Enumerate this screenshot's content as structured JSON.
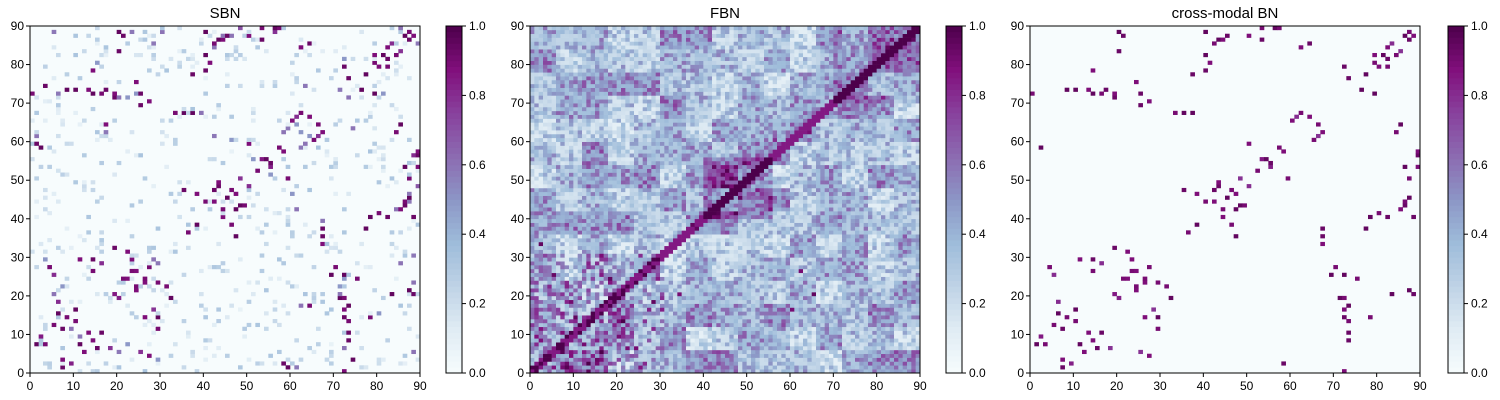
{
  "chart_data": [
    {
      "type": "heatmap",
      "title": "SBN",
      "xlabel": "",
      "ylabel": "",
      "xlim": [
        0,
        90
      ],
      "ylim": [
        0,
        90
      ],
      "xticks": [
        "0",
        "10",
        "20",
        "30",
        "40",
        "50",
        "60",
        "70",
        "80",
        "90"
      ],
      "yticks": [
        "0",
        "10",
        "20",
        "30",
        "40",
        "50",
        "60",
        "70",
        "80",
        "90"
      ],
      "colorbar": {
        "range": [
          0,
          1
        ],
        "ticks": [
          "0.0",
          "0.2",
          "0.4",
          "0.6",
          "0.8",
          "1.0"
        ]
      },
      "colormap": [
        "#f7fcfd",
        "#e0ecf4",
        "#bfd3e6",
        "#9ebcda",
        "#8c96c6",
        "#8c6bb1",
        "#88419d",
        "#810f7c",
        "#4d004b"
      ],
      "grid_size": 90,
      "pattern": "sparse",
      "edges": [
        [
          1,
          7,
          0.95
        ],
        [
          3,
          7,
          0.9
        ],
        [
          2,
          9,
          0.85
        ],
        [
          5,
          12,
          0.9
        ],
        [
          6,
          15,
          0.95
        ],
        [
          8,
          14,
          0.9
        ],
        [
          9,
          11,
          0.6
        ],
        [
          10,
          13,
          0.9
        ],
        [
          10,
          16,
          0.95
        ],
        [
          11,
          7,
          0.95
        ],
        [
          4,
          27,
          0.9
        ],
        [
          5,
          25,
          0.8
        ],
        [
          6,
          18,
          0.8
        ],
        [
          5,
          20,
          0.6
        ],
        [
          7,
          22,
          0.5
        ],
        [
          3,
          29,
          0.5
        ],
        [
          2,
          58,
          0.95
        ],
        [
          1,
          61,
          0.6
        ],
        [
          0,
          72,
          0.9
        ],
        [
          8,
          73,
          0.95
        ],
        [
          10,
          73,
          0.95
        ],
        [
          14,
          72,
          0.95
        ],
        [
          16,
          72,
          0.9
        ],
        [
          20,
          71,
          0.6
        ],
        [
          22,
          71,
          0.5
        ],
        [
          24,
          72,
          0.5
        ],
        [
          14,
          26,
          0.9
        ],
        [
          16,
          28,
          0.8
        ],
        [
          19,
          20,
          0.85
        ],
        [
          23,
          26,
          0.9
        ],
        [
          21,
          24,
          0.9
        ],
        [
          26,
          24,
          0.9
        ],
        [
          24,
          22,
          0.9
        ],
        [
          27,
          27,
          0.9
        ],
        [
          28,
          29,
          0.6
        ],
        [
          29,
          23,
          0.9
        ],
        [
          29,
          14,
          0.95
        ],
        [
          29,
          11,
          0.9
        ],
        [
          32,
          19,
          0.95
        ],
        [
          31,
          22,
          0.9
        ],
        [
          35,
          67,
          0.95
        ],
        [
          33,
          67,
          0.9
        ],
        [
          37,
          67,
          0.95
        ],
        [
          39,
          67,
          0.6
        ],
        [
          40,
          82,
          0.95
        ],
        [
          43,
          86,
          0.95
        ],
        [
          40,
          88,
          0.95
        ],
        [
          42,
          85,
          0.9
        ],
        [
          36,
          36,
          0.9
        ],
        [
          38,
          38,
          0.95
        ],
        [
          40,
          44,
          0.9
        ],
        [
          44,
          42,
          0.9
        ],
        [
          45,
          45,
          0.95
        ],
        [
          46,
          47,
          0.9
        ],
        [
          47,
          42,
          0.95
        ],
        [
          48,
          43,
          0.95
        ],
        [
          49,
          43,
          0.9
        ],
        [
          46,
          38,
          0.9
        ],
        [
          47,
          35,
          0.95
        ],
        [
          50,
          48,
          0.8
        ],
        [
          52,
          52,
          0.9
        ],
        [
          54,
          55,
          0.95
        ],
        [
          53,
          55,
          0.85
        ],
        [
          55,
          51,
          0.5
        ],
        [
          57,
          58,
          0.9
        ],
        [
          58,
          62,
          0.6
        ],
        [
          59,
          50,
          0.9
        ],
        [
          60,
          46,
          0.5
        ],
        [
          61,
          42,
          0.6
        ],
        [
          62,
          62,
          0.5
        ],
        [
          63,
          59,
          0.6
        ],
        [
          64,
          61,
          0.5
        ],
        [
          65,
          60,
          0.9
        ],
        [
          66,
          64,
          0.9
        ],
        [
          61,
          66,
          0.8
        ],
        [
          62,
          67,
          0.9
        ],
        [
          56,
          89,
          0.95
        ],
        [
          53,
          89,
          0.9
        ],
        [
          48,
          89,
          0.7
        ],
        [
          46,
          87,
          0.6
        ],
        [
          59,
          1,
          0.95
        ],
        [
          62,
          17,
          0.6
        ],
        [
          64,
          17,
          0.9
        ],
        [
          71,
          19,
          0.95
        ],
        [
          72,
          19,
          0.9
        ],
        [
          72,
          25,
          0.95
        ],
        [
          73,
          13,
          0.9
        ],
        [
          73,
          17,
          0.95
        ],
        [
          74,
          3,
          0.95
        ],
        [
          72,
          6,
          0.6
        ],
        [
          70,
          27,
          0.9
        ],
        [
          69,
          25,
          0.95
        ],
        [
          76,
          73,
          0.95
        ],
        [
          73,
          71,
          0.6
        ],
        [
          74,
          63,
          0.6
        ],
        [
          77,
          77,
          0.95
        ],
        [
          79,
          80,
          0.9
        ],
        [
          81,
          82,
          0.95
        ],
        [
          82,
          79,
          0.9
        ],
        [
          83,
          85,
          0.8
        ],
        [
          79,
          72,
          0.95
        ],
        [
          81,
          72,
          0.5
        ],
        [
          86,
          87,
          0.95
        ],
        [
          87,
          88,
          0.9
        ],
        [
          85,
          89,
          0.6
        ],
        [
          84,
          82,
          0.9
        ],
        [
          85,
          64,
          0.95
        ],
        [
          84,
          62,
          0.9
        ],
        [
          86,
          53,
          0.95
        ],
        [
          87,
          50,
          0.9
        ],
        [
          88,
          56,
          0.8
        ],
        [
          87,
          45,
          0.95
        ],
        [
          86,
          44,
          0.9
        ],
        [
          84,
          42,
          0.6
        ],
        [
          82,
          40,
          0.8
        ],
        [
          80,
          41,
          0.9
        ],
        [
          78,
          40,
          0.95
        ],
        [
          77,
          37,
          0.95
        ],
        [
          87,
          21,
          0.95
        ],
        [
          88,
          23,
          0.6
        ],
        [
          85,
          28,
          0.6
        ],
        [
          83,
          20,
          0.95
        ],
        [
          80,
          15,
          0.5
        ],
        [
          78,
          14,
          0.9
        ],
        [
          88,
          5,
          0.6
        ],
        [
          75,
          24,
          0.9
        ],
        [
          90,
          89,
          0.6
        ],
        [
          20,
          88,
          0.95
        ],
        [
          21,
          87,
          0.9
        ],
        [
          30,
          88,
          0.6
        ],
        [
          44,
          87,
          0.6
        ],
        [
          57,
          89,
          0.9
        ]
      ]
    },
    {
      "type": "heatmap",
      "title": "FBN",
      "xlabel": "",
      "ylabel": "",
      "xlim": [
        0,
        90
      ],
      "ylim": [
        0,
        90
      ],
      "xticks": [
        "0",
        "10",
        "20",
        "30",
        "40",
        "50",
        "60",
        "70",
        "80",
        "90"
      ],
      "yticks": [
        "0",
        "10",
        "20",
        "30",
        "40",
        "50",
        "60",
        "70",
        "80",
        "90"
      ],
      "colorbar": {
        "range": [
          0,
          1
        ],
        "ticks": [
          "0.0",
          "0.2",
          "0.4",
          "0.6",
          "0.8",
          "1.0"
        ]
      },
      "colormap": [
        "#f7fcfd",
        "#e0ecf4",
        "#bfd3e6",
        "#9ebcda",
        "#8c96c6",
        "#8c6bb1",
        "#88419d",
        "#810f7c",
        "#4d004b"
      ],
      "grid_size": 90,
      "pattern": "dense",
      "edges": [
        [
          2,
          33,
          0.95
        ],
        [
          5,
          25,
          0.9
        ],
        [
          10,
          14,
          0.95
        ],
        [
          16,
          25,
          0.85
        ],
        [
          18,
          24,
          0.95
        ],
        [
          24,
          6,
          0.9
        ],
        [
          28,
          18,
          0.95
        ],
        [
          34,
          20,
          0.9
        ],
        [
          60,
          16,
          0.9
        ],
        [
          65,
          20,
          0.95
        ],
        [
          62,
          26,
          0.9
        ],
        [
          75,
          75,
          0.95
        ],
        [
          78,
          77,
          0.9
        ],
        [
          82,
          84,
          0.95
        ],
        [
          83,
          86,
          0.9
        ],
        [
          44,
          44,
          0.95
        ],
        [
          46,
          48,
          0.9
        ],
        [
          48,
          45,
          0.95
        ],
        [
          50,
          51,
          0.9
        ],
        [
          52,
          47,
          0.85
        ],
        [
          40,
          40,
          0.95
        ],
        [
          38,
          37,
          0.95
        ],
        [
          37,
          38,
          0.95
        ],
        [
          56,
          60,
          0.8
        ],
        [
          64,
          62,
          0.9
        ],
        [
          88,
          86,
          0.95
        ]
      ]
    },
    {
      "type": "heatmap",
      "title": "cross-modal BN",
      "xlabel": "",
      "ylabel": "",
      "xlim": [
        0,
        90
      ],
      "ylim": [
        0,
        90
      ],
      "xticks": [
        "0",
        "10",
        "20",
        "30",
        "40",
        "50",
        "60",
        "70",
        "80",
        "90"
      ],
      "yticks": [
        "0",
        "10",
        "20",
        "30",
        "40",
        "50",
        "60",
        "70",
        "80",
        "90"
      ],
      "colorbar": {
        "range": [
          0,
          1
        ],
        "ticks": [
          "0.0",
          "0.2",
          "0.4",
          "0.6",
          "0.8",
          "1.0"
        ]
      },
      "colormap": [
        "#f7fcfd",
        "#e0ecf4",
        "#bfd3e6",
        "#9ebcda",
        "#8c96c6",
        "#8c6bb1",
        "#88419d",
        "#810f7c",
        "#4d004b"
      ],
      "grid_size": 90,
      "pattern": "sparse",
      "edges": [
        [
          1,
          7,
          0.95
        ],
        [
          3,
          7,
          0.9
        ],
        [
          2,
          9,
          0.85
        ],
        [
          5,
          12,
          0.9
        ],
        [
          6,
          15,
          0.95
        ],
        [
          8,
          14,
          0.9
        ],
        [
          10,
          13,
          0.9
        ],
        [
          10,
          16,
          0.95
        ],
        [
          11,
          7,
          0.95
        ],
        [
          4,
          27,
          0.9
        ],
        [
          5,
          25,
          0.8
        ],
        [
          6,
          18,
          0.8
        ],
        [
          2,
          58,
          0.95
        ],
        [
          0,
          72,
          0.9
        ],
        [
          8,
          73,
          0.95
        ],
        [
          10,
          73,
          0.95
        ],
        [
          14,
          72,
          0.95
        ],
        [
          16,
          72,
          0.9
        ],
        [
          14,
          26,
          0.9
        ],
        [
          16,
          28,
          0.8
        ],
        [
          19,
          20,
          0.85
        ],
        [
          23,
          26,
          0.9
        ],
        [
          21,
          24,
          0.9
        ],
        [
          26,
          24,
          0.9
        ],
        [
          24,
          22,
          0.9
        ],
        [
          27,
          27,
          0.9
        ],
        [
          29,
          23,
          0.9
        ],
        [
          29,
          14,
          0.95
        ],
        [
          29,
          11,
          0.9
        ],
        [
          32,
          19,
          0.95
        ],
        [
          31,
          22,
          0.9
        ],
        [
          35,
          67,
          0.95
        ],
        [
          33,
          67,
          0.9
        ],
        [
          37,
          67,
          0.95
        ],
        [
          40,
          82,
          0.95
        ],
        [
          43,
          86,
          0.95
        ],
        [
          40,
          88,
          0.95
        ],
        [
          42,
          85,
          0.9
        ],
        [
          36,
          36,
          0.9
        ],
        [
          38,
          38,
          0.95
        ],
        [
          40,
          44,
          0.9
        ],
        [
          44,
          42,
          0.9
        ],
        [
          45,
          45,
          0.95
        ],
        [
          46,
          47,
          0.9
        ],
        [
          47,
          42,
          0.95
        ],
        [
          48,
          43,
          0.95
        ],
        [
          49,
          43,
          0.9
        ],
        [
          46,
          38,
          0.9
        ],
        [
          47,
          35,
          0.95
        ],
        [
          50,
          48,
          0.8
        ],
        [
          52,
          52,
          0.9
        ],
        [
          54,
          55,
          0.95
        ],
        [
          53,
          55,
          0.85
        ],
        [
          57,
          58,
          0.9
        ],
        [
          59,
          50,
          0.9
        ],
        [
          65,
          60,
          0.9
        ],
        [
          66,
          64,
          0.9
        ],
        [
          61,
          66,
          0.8
        ],
        [
          62,
          67,
          0.9
        ],
        [
          56,
          89,
          0.95
        ],
        [
          53,
          89,
          0.9
        ],
        [
          71,
          19,
          0.95
        ],
        [
          72,
          19,
          0.9
        ],
        [
          72,
          25,
          0.95
        ],
        [
          73,
          13,
          0.9
        ],
        [
          73,
          17,
          0.95
        ],
        [
          70,
          27,
          0.9
        ],
        [
          69,
          25,
          0.95
        ],
        [
          76,
          73,
          0.95
        ],
        [
          77,
          77,
          0.95
        ],
        [
          79,
          80,
          0.9
        ],
        [
          81,
          82,
          0.95
        ],
        [
          82,
          79,
          0.9
        ],
        [
          83,
          85,
          0.8
        ],
        [
          79,
          72,
          0.95
        ],
        [
          86,
          87,
          0.95
        ],
        [
          87,
          88,
          0.9
        ],
        [
          84,
          82,
          0.9
        ],
        [
          85,
          64,
          0.95
        ],
        [
          84,
          62,
          0.9
        ],
        [
          86,
          53,
          0.95
        ],
        [
          87,
          50,
          0.9
        ],
        [
          87,
          45,
          0.95
        ],
        [
          86,
          44,
          0.9
        ],
        [
          82,
          40,
          0.8
        ],
        [
          80,
          41,
          0.9
        ],
        [
          78,
          40,
          0.95
        ],
        [
          77,
          37,
          0.95
        ],
        [
          87,
          21,
          0.95
        ],
        [
          83,
          20,
          0.95
        ],
        [
          78,
          14,
          0.9
        ],
        [
          75,
          24,
          0.9
        ],
        [
          20,
          88,
          0.95
        ],
        [
          21,
          87,
          0.9
        ],
        [
          57,
          89,
          0.9
        ]
      ]
    }
  ]
}
